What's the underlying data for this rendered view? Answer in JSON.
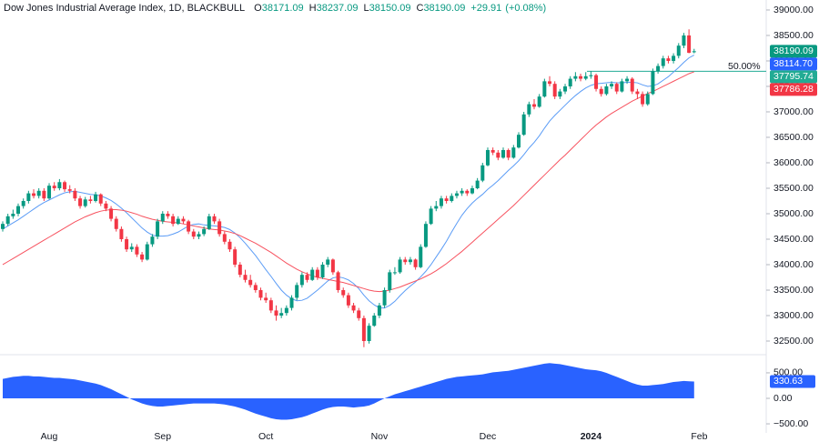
{
  "chart_data": {
    "type": "candlestick",
    "title": "Dow Jones Industrial Average Index, 1D, BLACKBULL",
    "ohlc_legend": [
      {
        "label": "O",
        "value": 38171.09
      },
      {
        "label": "H",
        "value": 38237.09
      },
      {
        "label": "L",
        "value": 38150.09
      },
      {
        "label": "C",
        "value": 38190.09
      }
    ],
    "change": {
      "value": 29.91,
      "label": "+29.91"
    },
    "change_pct": {
      "value": 0.08,
      "label": "(+0.08%)"
    },
    "up_color": "#089981",
    "down_color": "#f23645",
    "categories": [
      null,
      null,
      null,
      null,
      null,
      null,
      null,
      null,
      null,
      "Aug",
      null,
      null,
      null,
      null,
      null,
      null,
      null,
      null,
      null,
      null,
      null,
      null,
      null,
      null,
      null,
      null,
      null,
      null,
      null,
      null,
      null,
      "Sep",
      null,
      null,
      null,
      null,
      null,
      null,
      null,
      null,
      null,
      null,
      null,
      null,
      null,
      null,
      null,
      null,
      null,
      null,
      null,
      "Oct",
      null,
      null,
      null,
      null,
      null,
      null,
      null,
      null,
      null,
      null,
      null,
      null,
      null,
      null,
      null,
      null,
      null,
      null,
      null,
      null,
      null,
      "Nov",
      null,
      null,
      null,
      null,
      null,
      null,
      null,
      null,
      null,
      null,
      null,
      null,
      null,
      null,
      null,
      null,
      null,
      null,
      null,
      null,
      "Dec",
      null,
      null,
      null,
      null,
      null,
      null,
      null,
      null,
      null,
      null,
      null,
      null,
      null,
      null,
      null,
      null,
      null,
      null,
      null,
      "2024",
      null,
      null,
      null,
      null,
      null,
      null,
      null,
      null,
      null,
      null,
      null,
      null,
      null,
      null,
      null,
      null,
      null,
      null,
      null,
      null,
      "Feb"
    ],
    "open": [
      34700,
      34800,
      34950,
      35000,
      35150,
      35250,
      35400,
      35350,
      35450,
      35300,
      35550,
      35500,
      35620,
      35480,
      35450,
      35300,
      35150,
      35280,
      35250,
      35380,
      35200,
      35100,
      34900,
      34700,
      34500,
      34300,
      34350,
      34200,
      34100,
      34400,
      34550,
      34850,
      35000,
      34950,
      34800,
      34900,
      34850,
      34650,
      34550,
      34600,
      34700,
      34950,
      34850,
      34600,
      34450,
      34300,
      34000,
      33800,
      33700,
      33600,
      33500,
      33350,
      33300,
      33100,
      33000,
      33050,
      33150,
      33350,
      33600,
      33800,
      33700,
      33900,
      33750,
      34000,
      34100,
      33850,
      33500,
      33400,
      33200,
      33100,
      32950,
      32500,
      32800,
      33000,
      33200,
      33500,
      33850,
      33850,
      34100,
      34050,
      34100,
      33950,
      34350,
      34800,
      35100,
      35150,
      35300,
      35250,
      35350,
      35400,
      35450,
      35400,
      35500,
      35650,
      35950,
      36250,
      36200,
      36100,
      36250,
      36100,
      36300,
      36550,
      36950,
      37150,
      37100,
      37300,
      37600,
      37550,
      37300,
      37400,
      37500,
      37650,
      37700,
      37650,
      37700,
      37720,
      37450,
      37350,
      37500,
      37550,
      37400,
      37600,
      37650,
      37400,
      37350,
      37150,
      37350,
      37800,
      37900,
      38050,
      38000,
      38100,
      38300,
      38500,
      38171.09,
      null
    ],
    "high": [
      34850,
      35000,
      35080,
      35200,
      35300,
      35450,
      35480,
      35500,
      35500,
      35600,
      35620,
      35680,
      35650,
      35560,
      35500,
      35350,
      35330,
      35350,
      35430,
      35400,
      35250,
      35150,
      34950,
      34750,
      34550,
      34420,
      34400,
      34250,
      34450,
      34600,
      34900,
      35050,
      35050,
      35000,
      34950,
      34950,
      34880,
      34700,
      34650,
      34750,
      35000,
      35000,
      34900,
      34650,
      34500,
      34350,
      34050,
      33900,
      33800,
      33650,
      33550,
      33450,
      33350,
      33200,
      33150,
      33200,
      33400,
      33650,
      33850,
      33850,
      33950,
      33950,
      34050,
      34150,
      34120,
      33880,
      33550,
      33450,
      33250,
      33150,
      33000,
      32850,
      33050,
      33250,
      33550,
      33900,
      33950,
      34150,
      34150,
      34150,
      34120,
      34400,
      34850,
      35150,
      35250,
      35350,
      35350,
      35400,
      35450,
      35500,
      35480,
      35550,
      35700,
      36000,
      36300,
      36300,
      36250,
      36300,
      36280,
      36350,
      36600,
      37000,
      37200,
      37250,
      37350,
      37650,
      37700,
      37600,
      37450,
      37550,
      37700,
      37780,
      37750,
      37780,
      37800,
      37750,
      37500,
      37550,
      37600,
      37580,
      37650,
      37700,
      37680,
      37450,
      37400,
      37400,
      37850,
      37950,
      38100,
      38100,
      38150,
      38350,
      38550,
      38620,
      38237.09,
      null
    ],
    "low": [
      34650,
      34760,
      34900,
      34950,
      35100,
      35200,
      35300,
      35300,
      35250,
      35280,
      35450,
      35460,
      35430,
      35400,
      35250,
      35100,
      35120,
      35200,
      35220,
      35150,
      35050,
      34850,
      34650,
      34450,
      34250,
      34250,
      34150,
      34050,
      34080,
      34350,
      34500,
      34800,
      34900,
      34750,
      34780,
      34800,
      34600,
      34500,
      34500,
      34560,
      34680,
      34800,
      34550,
      34400,
      34250,
      33950,
      33750,
      33650,
      33550,
      33450,
      33300,
      33250,
      33050,
      32900,
      32950,
      33000,
      33100,
      33300,
      33550,
      33650,
      33680,
      33700,
      33720,
      33950,
      33800,
      33450,
      33350,
      33150,
      33050,
      32900,
      32380,
      32450,
      32780,
      32950,
      33150,
      33450,
      33800,
      33820,
      34000,
      34000,
      33900,
      33930,
      34330,
      34780,
      35050,
      35100,
      35200,
      35220,
      35300,
      35350,
      35350,
      35380,
      35480,
      35620,
      35930,
      36150,
      36050,
      36080,
      36050,
      36080,
      36280,
      36530,
      36900,
      37050,
      37080,
      37280,
      37500,
      37250,
      37250,
      37350,
      37450,
      37600,
      37600,
      37620,
      37650,
      37400,
      37300,
      37320,
      37450,
      37350,
      37380,
      37550,
      37350,
      37250,
      37100,
      37120,
      37330,
      37750,
      37850,
      37950,
      37950,
      38050,
      38250,
      38150,
      38150.09,
      null
    ],
    "close": [
      34800,
      34950,
      35000,
      35150,
      35250,
      35400,
      35350,
      35450,
      35300,
      35550,
      35500,
      35620,
      35480,
      35450,
      35300,
      35150,
      35280,
      35250,
      35380,
      35200,
      35100,
      34900,
      34700,
      34500,
      34300,
      34350,
      34200,
      34100,
      34400,
      34550,
      34850,
      35000,
      34950,
      34800,
      34900,
      34850,
      34650,
      34550,
      34600,
      34700,
      34950,
      34850,
      34600,
      34450,
      34300,
      34000,
      33800,
      33700,
      33600,
      33500,
      33350,
      33300,
      33100,
      33000,
      33050,
      33150,
      33350,
      33600,
      33800,
      33700,
      33900,
      33750,
      34000,
      34100,
      33850,
      33500,
      33400,
      33200,
      33100,
      32950,
      32500,
      32800,
      33000,
      33200,
      33500,
      33850,
      33850,
      34100,
      34050,
      34100,
      33950,
      34350,
      34800,
      35100,
      35150,
      35300,
      35250,
      35350,
      35400,
      35450,
      35400,
      35500,
      35650,
      35950,
      36250,
      36200,
      36100,
      36250,
      36100,
      36300,
      36550,
      36950,
      37150,
      37100,
      37300,
      37600,
      37550,
      37300,
      37400,
      37500,
      37650,
      37700,
      37650,
      37700,
      37720,
      37450,
      37350,
      37500,
      37550,
      37400,
      37600,
      37650,
      37400,
      37350,
      37150,
      37350,
      37800,
      37900,
      38050,
      38000,
      38100,
      38300,
      38500,
      38160,
      38190.09,
      null
    ],
    "series": [
      {
        "color": "#5b9cf6",
        "values": [
          34700,
          34760,
          34820,
          34880,
          34950,
          35020,
          35090,
          35160,
          35220,
          35270,
          35320,
          35370,
          35410,
          35430,
          35440,
          35420,
          35400,
          35380,
          35370,
          35350,
          35310,
          35260,
          35190,
          35110,
          35020,
          34920,
          34820,
          34720,
          34640,
          34580,
          34560,
          34560,
          34570,
          34600,
          34640,
          34700,
          34760,
          34790,
          34800,
          34780,
          34770,
          34760,
          34750,
          34730,
          34690,
          34620,
          34530,
          34420,
          34300,
          34180,
          34040,
          33900,
          33770,
          33630,
          33500,
          33400,
          33330,
          33290,
          33300,
          33340,
          33420,
          33500,
          33590,
          33680,
          33740,
          33760,
          33740,
          33700,
          33630,
          33530,
          33400,
          33290,
          33210,
          33150,
          33150,
          33200,
          33280,
          33390,
          33490,
          33580,
          33660,
          33760,
          33870,
          34000,
          34150,
          34300,
          34460,
          34640,
          34810,
          34970,
          35100,
          35210,
          35300,
          35380,
          35480,
          35560,
          35650,
          35750,
          35850,
          35940,
          36040,
          36160,
          36290,
          36400,
          36530,
          36680,
          36820,
          36930,
          37030,
          37130,
          37230,
          37320,
          37400,
          37470,
          37520,
          37550,
          37560,
          37570,
          37580,
          37570,
          37570,
          37580,
          37580,
          37570,
          37530,
          37500,
          37510,
          37550,
          37620,
          37690,
          37780,
          37870,
          37970,
          38060,
          38114.7,
          null
        ]
      },
      {
        "color": "#f7525f",
        "values": [
          34000,
          34060,
          34120,
          34180,
          34240,
          34300,
          34360,
          34420,
          34480,
          34540,
          34600,
          34660,
          34720,
          34780,
          34840,
          34890,
          34940,
          34980,
          35020,
          35050,
          35070,
          35080,
          35080,
          35070,
          35050,
          35020,
          34990,
          34950,
          34920,
          34890,
          34870,
          34850,
          34840,
          34830,
          34820,
          34800,
          34780,
          34760,
          34740,
          34720,
          34700,
          34690,
          34680,
          34660,
          34640,
          34610,
          34570,
          34520,
          34470,
          34420,
          34360,
          34300,
          34240,
          34170,
          34100,
          34030,
          33970,
          33910,
          33860,
          33820,
          33780,
          33750,
          33730,
          33710,
          33690,
          33670,
          33650,
          33620,
          33590,
          33560,
          33530,
          33500,
          33480,
          33470,
          33480,
          33500,
          33530,
          33560,
          33600,
          33640,
          33680,
          33720,
          33770,
          33820,
          33880,
          33950,
          34020,
          34100,
          34180,
          34260,
          34350,
          34440,
          34530,
          34620,
          34710,
          34800,
          34890,
          34980,
          35070,
          35160,
          35260,
          35360,
          35460,
          35560,
          35660,
          35760,
          35860,
          35960,
          36060,
          36150,
          36250,
          36350,
          36450,
          36550,
          36650,
          36740,
          36820,
          36900,
          36970,
          37030,
          37090,
          37150,
          37210,
          37260,
          37310,
          37360,
          37400,
          37450,
          37500,
          37550,
          37600,
          37650,
          37700,
          37750,
          37786.28,
          null
        ]
      }
    ],
    "ylim": [
      32232,
      39196
    ],
    "yticks": [
      {
        "value": 39000,
        "label": "39000.00"
      },
      {
        "value": 38500,
        "label": "38500.00"
      },
      {
        "value": 38000,
        "label": "38000.00"
      },
      {
        "value": 37500,
        "label": "37500.00"
      },
      {
        "value": 37000,
        "label": "37000.00"
      },
      {
        "value": 36500,
        "label": "36500.00"
      },
      {
        "value": 36000,
        "label": "36000.00"
      },
      {
        "value": 35500,
        "label": "35500.00"
      },
      {
        "value": 35000,
        "label": "35000.00"
      },
      {
        "value": 34500,
        "label": "34500.00"
      },
      {
        "value": 34000,
        "label": "34000.00"
      },
      {
        "value": 33500,
        "label": "33500.00"
      },
      {
        "value": 33000,
        "label": "33000.00"
      },
      {
        "value": 32500,
        "label": "32500.00"
      }
    ],
    "fib": {
      "label": "50.00%",
      "level": 37795.74,
      "color": "#22ab94"
    },
    "price_tags": [
      {
        "value": 38190.09,
        "color": "#089981"
      },
      {
        "value": 38114.7,
        "label": "38114.70",
        "color": "#2962ff"
      },
      {
        "value": 37795.74,
        "color": "#22ab94"
      },
      {
        "value": 37786.28,
        "color": "#f23645"
      }
    ],
    "oscillator": {
      "color": "#2962ff",
      "values": [
        380,
        400,
        420,
        430,
        440,
        440,
        430,
        430,
        420,
        410,
        400,
        400,
        390,
        380,
        370,
        350,
        330,
        310,
        290,
        260,
        220,
        180,
        130,
        80,
        30,
        -20,
        -60,
        -100,
        -130,
        -150,
        -160,
        -160,
        -150,
        -140,
        -130,
        -120,
        -110,
        -100,
        -100,
        -100,
        -100,
        -100,
        -110,
        -120,
        -140,
        -160,
        -190,
        -220,
        -260,
        -300,
        -330,
        -360,
        -390,
        -410,
        -420,
        -420,
        -410,
        -390,
        -370,
        -340,
        -300,
        -260,
        -220,
        -190,
        -170,
        -160,
        -160,
        -170,
        -180,
        -170,
        -160,
        -140,
        -100,
        -50,
        0,
        40,
        80,
        110,
        140,
        170,
        200,
        230,
        260,
        290,
        320,
        350,
        380,
        400,
        420,
        430,
        440,
        450,
        460,
        470,
        490,
        510,
        520,
        530,
        540,
        560,
        580,
        600,
        620,
        640,
        660,
        680,
        690,
        680,
        670,
        650,
        630,
        610,
        590,
        570,
        560,
        550,
        530,
        500,
        460,
        420,
        380,
        340,
        300,
        270,
        250,
        250,
        260,
        270,
        280,
        300,
        320,
        330,
        340,
        335,
        330.63,
        null
      ],
      "ylim": [
        -660,
        820
      ],
      "yticks": [
        {
          "value": 500,
          "label": "500.00"
        },
        {
          "value": 0,
          "label": "0.00"
        },
        {
          "value": -500,
          "label": "−500.00"
        }
      ]
    }
  }
}
